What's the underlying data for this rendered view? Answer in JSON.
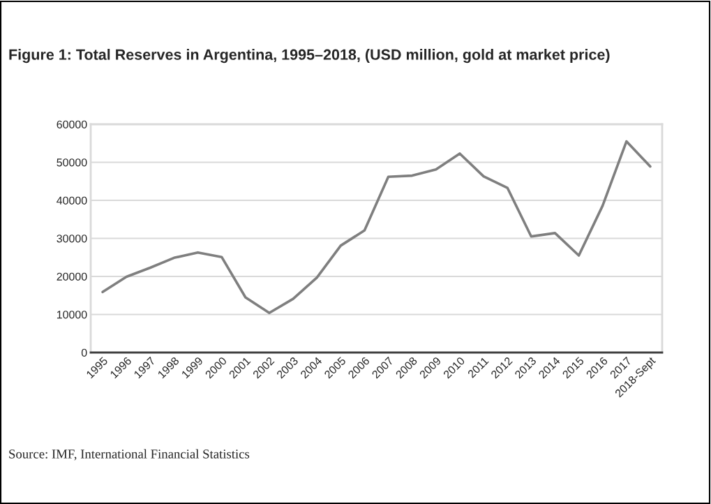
{
  "chart_data": {
    "type": "line",
    "title": "Figure 1: Total Reserves in Argentina, 1995–2018, (USD million, gold at market price)",
    "categories": [
      "1995",
      "1996",
      "1997",
      "1998",
      "1999",
      "2000",
      "2001",
      "2002",
      "2003",
      "2004",
      "2005",
      "2006",
      "2007",
      "2008",
      "2009",
      "2010",
      "2011",
      "2012",
      "2013",
      "2014",
      "2015",
      "2016",
      "2017",
      "2018-Sept"
    ],
    "series": [
      {
        "color": "#7f7f7f",
        "values": [
          15900,
          19900,
          22300,
          24900,
          26300,
          25100,
          14500,
          10400,
          14100,
          19700,
          28100,
          32100,
          46200,
          46500,
          48100,
          52300,
          46300,
          43300,
          30500,
          31400,
          25500,
          38600,
          55500,
          48900
        ]
      }
    ],
    "ylim": [
      0,
      60000
    ],
    "yticks": [
      0,
      10000,
      20000,
      30000,
      40000,
      50000,
      60000
    ],
    "grid": "y",
    "marker": "none",
    "line_style": "solid",
    "legend": false,
    "annotations": [
      "Source: IMF, International Financial Statistics"
    ]
  }
}
